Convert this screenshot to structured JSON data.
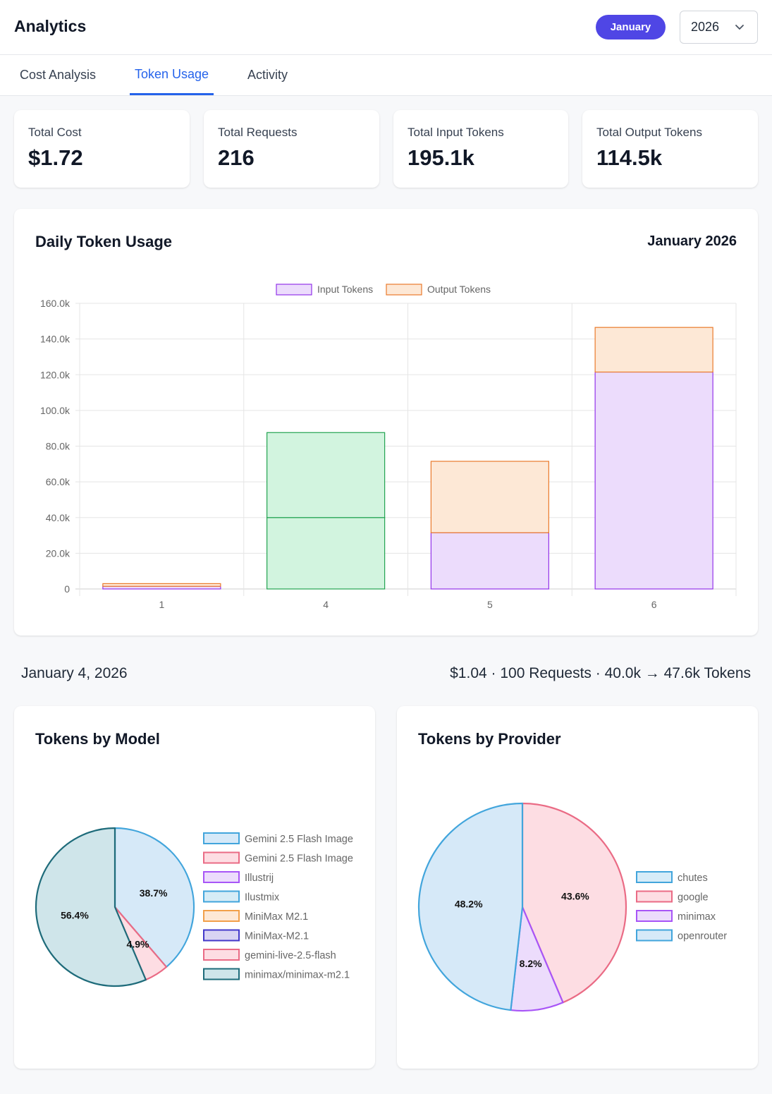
{
  "header": {
    "title": "Analytics",
    "month": "January",
    "year": "2026"
  },
  "tabs": [
    {
      "label": "Cost Analysis",
      "active": false
    },
    {
      "label": "Token Usage",
      "active": true
    },
    {
      "label": "Activity",
      "active": false
    }
  ],
  "stats": [
    {
      "label": "Total Cost",
      "value": "$1.72"
    },
    {
      "label": "Total Requests",
      "value": "216"
    },
    {
      "label": "Total Input Tokens",
      "value": "195.1k"
    },
    {
      "label": "Total Output Tokens",
      "value": "114.5k"
    }
  ],
  "daily": {
    "title": "Daily Token Usage",
    "period": "January 2026"
  },
  "selected_day": {
    "title": "January 4, 2026",
    "summary": "$1.04 · 100 Requests · 40.0k → 47.6k Tokens"
  },
  "model_card": {
    "title": "Tokens by Model"
  },
  "provider_card": {
    "title": "Tokens by Provider"
  },
  "colors": {
    "input_fill": "#ecdcfc",
    "input_stroke": "#9333ea",
    "output_fill": "#fde8d6",
    "output_stroke": "#ea7a2c",
    "selected_fill": "#d2f4df",
    "selected_stroke": "#22a350"
  },
  "chart_data": [
    {
      "type": "bar",
      "stacked": true,
      "categories": [
        "1",
        "4",
        "5",
        "6"
      ],
      "series": [
        {
          "name": "Input Tokens",
          "values": [
            1500,
            40000,
            31500,
            121500
          ]
        },
        {
          "name": "Output Tokens",
          "values": [
            1500,
            47600,
            40000,
            25000
          ]
        }
      ],
      "selected_category": "4",
      "ylim": [
        0,
        160000
      ],
      "yticks": [
        "0",
        "20.0k",
        "40.0k",
        "60.0k",
        "80.0k",
        "100.0k",
        "120.0k",
        "140.0k",
        "160.0k"
      ],
      "legend": "top",
      "grid": true
    },
    {
      "type": "pie",
      "legend": "right",
      "labels": [
        "Gemini 2.5 Flash Image",
        "Gemini 2.5 Flash Image",
        "Illustrij",
        "Ilustmix",
        "MiniMax M2.1",
        "MiniMax-M2.1",
        "gemini-live-2.5-flash",
        "minimax/minimax-m2.1"
      ],
      "values": [
        38.7,
        0,
        0,
        0,
        0,
        0,
        4.9,
        56.4
      ],
      "display_labels": [
        "38.7%",
        "",
        "",
        "",
        "",
        "",
        "4.9%",
        "56.4%"
      ],
      "fills": [
        "#d6e9f8",
        "#fddde3",
        "#ecdcfc",
        "#d6ecf6",
        "#fde8d6",
        "#d9d4f3",
        "#fddde3",
        "#cfe5ea"
      ],
      "strokes": [
        "#42a5dc",
        "#ea6b85",
        "#a855f7",
        "#42a5dc",
        "#f2a04a",
        "#4338ca",
        "#ea6b85",
        "#1e6b7a"
      ]
    },
    {
      "type": "pie",
      "legend": "right",
      "labels": [
        "chutes",
        "google",
        "minimax",
        "openrouter"
      ],
      "values": [
        0,
        43.6,
        8.2,
        48.2
      ],
      "display_labels": [
        "",
        "43.6%",
        "8.2%",
        "48.2%"
      ],
      "fills": [
        "#d6ecf8",
        "#fddde3",
        "#ecdcfc",
        "#d6e9f8"
      ],
      "strokes": [
        "#42a5dc",
        "#ea6b85",
        "#a855f7",
        "#42a5dc"
      ]
    }
  ]
}
